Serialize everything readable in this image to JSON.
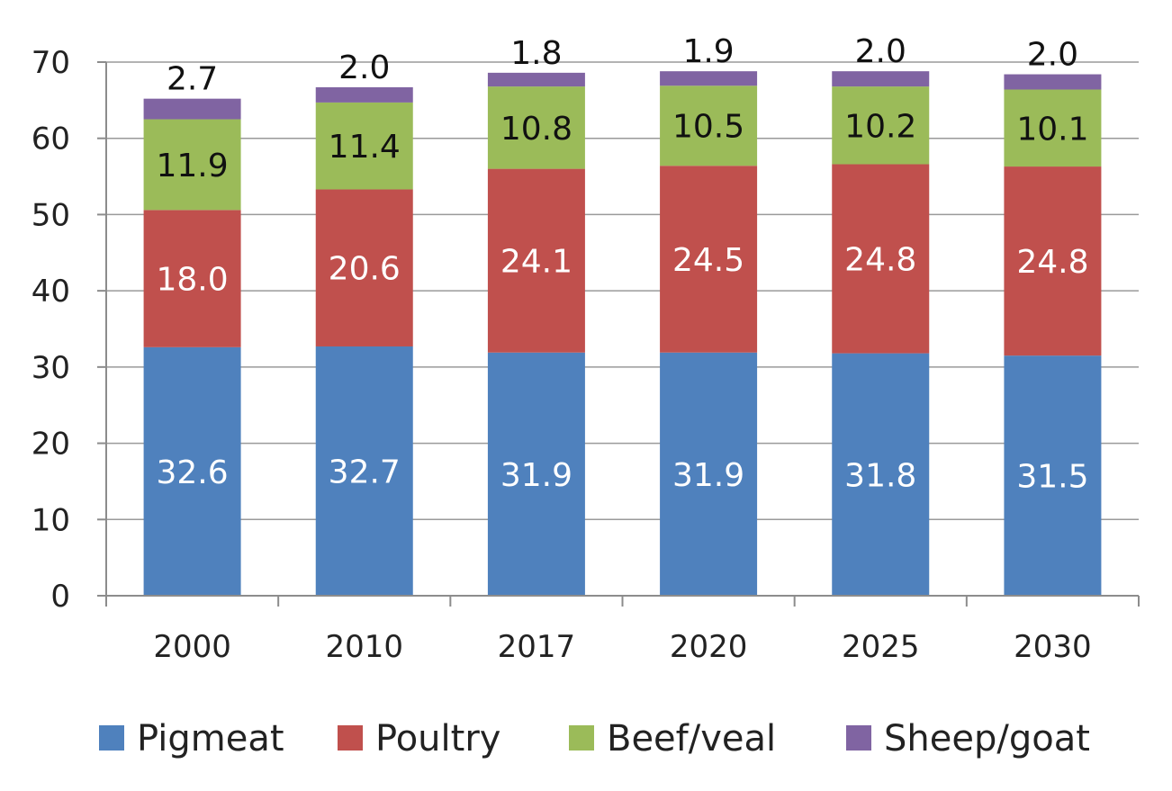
{
  "chart_data": {
    "type": "bar",
    "stacked": true,
    "categories": [
      "2000",
      "2010",
      "2017",
      "2020",
      "2025",
      "2030"
    ],
    "series": [
      {
        "name": "Pigmeat",
        "values": [
          32.6,
          32.7,
          31.9,
          31.9,
          31.8,
          31.5
        ],
        "color": "#4F81BD",
        "label_color": "#FFFFFF"
      },
      {
        "name": "Poultry",
        "values": [
          18.0,
          20.6,
          24.1,
          24.5,
          24.8,
          24.8
        ],
        "color": "#C0504D",
        "label_color": "#FFFFFF"
      },
      {
        "name": "Beef/veal",
        "values": [
          11.9,
          11.4,
          10.8,
          10.5,
          10.2,
          10.1
        ],
        "color": "#9BBB59",
        "label_color": "#111111"
      },
      {
        "name": "Sheep/goat",
        "values": [
          2.7,
          2.0,
          1.8,
          1.9,
          2.0,
          2.0
        ],
        "color": "#8064A2",
        "label_color": "#111111"
      }
    ],
    "ylim": [
      0,
      70
    ],
    "yticks": [
      0,
      10,
      20,
      30,
      40,
      50,
      60,
      70
    ],
    "grid": true,
    "legend_position": "bottom",
    "title": "",
    "xlabel": "",
    "ylabel": ""
  }
}
